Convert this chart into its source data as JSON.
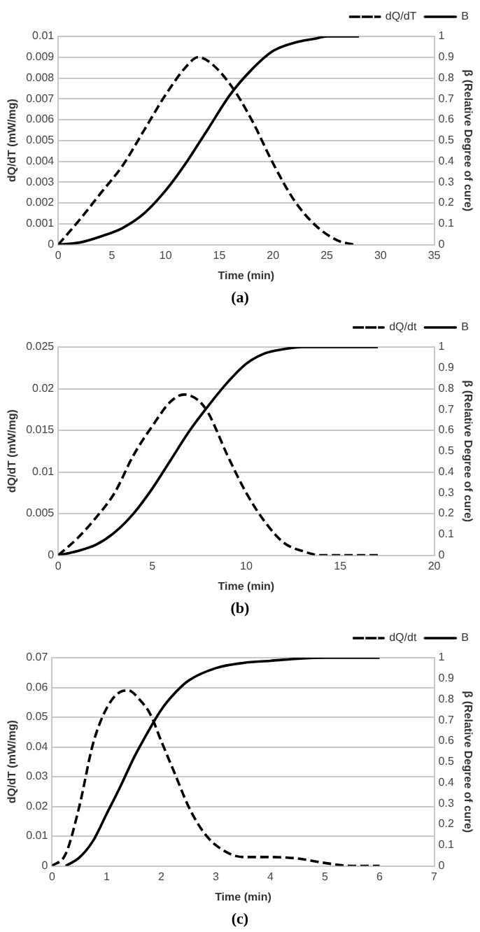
{
  "chart_data": [
    {
      "type": "line",
      "xlabel": "Time (min)",
      "ylabel": "dQ/dT (mW/mg)",
      "y2label": "β (Relative Degree of cure)",
      "annotations": [
        "(a)"
      ],
      "xlim": [
        0,
        35
      ],
      "xticks": [
        0,
        5,
        10,
        15,
        20,
        25,
        30,
        35
      ],
      "ylim": [
        0,
        0.01
      ],
      "yticks": [
        0,
        0.001,
        0.002,
        0.003,
        0.004,
        0.005,
        0.006,
        0.007,
        0.008,
        0.009,
        0.01
      ],
      "y2lim": [
        0,
        1
      ],
      "y2ticks": [
        0,
        0.1,
        0.2,
        0.3,
        0.4,
        0.5,
        0.6,
        0.7,
        0.8,
        0.9,
        1
      ],
      "grid": "y",
      "legend": "top right",
      "marker": "none",
      "series": [
        {
          "name": "dQ/dT",
          "color": "#000000",
          "line_style": "dashed",
          "x": [
            0,
            2,
            4,
            6,
            8,
            10,
            12,
            13,
            14,
            16,
            18,
            20,
            22,
            24,
            26,
            27.5
          ],
          "values": [
            0,
            0.0012,
            0.0025,
            0.0038,
            0.0055,
            0.0072,
            0.0086,
            0.009,
            0.0088,
            0.0077,
            0.006,
            0.0039,
            0.0021,
            0.0009,
            0.0002,
            0
          ]
        },
        {
          "name": "B",
          "color": "#000000",
          "line_style": "solid",
          "axis": "y2",
          "x": [
            0,
            2,
            4,
            6,
            8,
            10,
            12,
            13,
            14,
            16,
            18,
            20,
            22,
            24,
            25,
            28
          ],
          "values": [
            0,
            0.01,
            0.04,
            0.08,
            0.15,
            0.26,
            0.4,
            0.48,
            0.56,
            0.72,
            0.84,
            0.93,
            0.97,
            0.99,
            1,
            1
          ]
        }
      ]
    },
    {
      "type": "line",
      "xlabel": "Time (min)",
      "ylabel": "dQ/dT (mW/mg)",
      "y2label": "β (Relative Degree of cure)",
      "annotations": [
        "(b)"
      ],
      "xlim": [
        0,
        20
      ],
      "xticks": [
        0,
        5,
        10,
        15,
        20
      ],
      "ylim": [
        0,
        0.025
      ],
      "yticks": [
        0,
        0.005,
        0.01,
        0.015,
        0.02,
        0.025
      ],
      "y2lim": [
        0,
        1
      ],
      "y2ticks": [
        0,
        0.1,
        0.2,
        0.3,
        0.4,
        0.5,
        0.6,
        0.7,
        0.8,
        0.9,
        1
      ],
      "grid": "y",
      "legend": "top right",
      "marker": "none",
      "series": [
        {
          "name": "dQ/dt",
          "color": "#000000",
          "line_style": "dashed",
          "x": [
            0,
            1,
            2,
            3,
            4,
            5,
            6,
            6.7,
            7.5,
            8,
            9,
            10,
            11,
            12,
            13,
            14,
            17
          ],
          "values": [
            0,
            0.002,
            0.0045,
            0.0075,
            0.012,
            0.0155,
            0.0185,
            0.0193,
            0.0185,
            0.017,
            0.012,
            0.0075,
            0.004,
            0.0015,
            0.0005,
            0,
            0
          ]
        },
        {
          "name": "B",
          "color": "#000000",
          "line_style": "solid",
          "axis": "y2",
          "x": [
            0,
            1,
            2,
            3,
            4,
            5,
            6,
            7,
            8,
            9,
            10,
            11,
            12,
            13,
            17
          ],
          "values": [
            0,
            0.02,
            0.05,
            0.11,
            0.2,
            0.32,
            0.46,
            0.6,
            0.72,
            0.83,
            0.92,
            0.97,
            0.99,
            1,
            1
          ]
        }
      ]
    },
    {
      "type": "line",
      "xlabel": "Time (min)",
      "ylabel": "dQ/dT (mW/mg)",
      "y2label": "β (Relative Degree of cure)",
      "annotations": [
        "(c)"
      ],
      "xlim": [
        0,
        7
      ],
      "xticks": [
        0,
        1,
        2,
        3,
        4,
        5,
        6,
        7
      ],
      "ylim": [
        0,
        0.07
      ],
      "yticks": [
        0,
        0.01,
        0.02,
        0.03,
        0.04,
        0.05,
        0.06,
        0.07
      ],
      "y2lim": [
        0,
        1
      ],
      "y2ticks": [
        0,
        0.1,
        0.2,
        0.3,
        0.4,
        0.5,
        0.6,
        0.7,
        0.8,
        0.9,
        1
      ],
      "grid": "y",
      "legend": "top right",
      "marker": "none",
      "series": [
        {
          "name": "dQ/dt",
          "color": "#000000",
          "line_style": "dashed",
          "x": [
            0,
            0.25,
            0.5,
            0.75,
            1,
            1.25,
            1.4,
            1.6,
            1.8,
            2,
            2.25,
            2.5,
            2.75,
            3,
            3.5,
            4,
            4.5,
            5,
            5.5,
            6
          ],
          "values": [
            0,
            0.004,
            0.02,
            0.041,
            0.053,
            0.0585,
            0.059,
            0.056,
            0.051,
            0.042,
            0.031,
            0.02,
            0.012,
            0.007,
            0.003,
            0.003,
            0.0025,
            0.001,
            0,
            0
          ]
        },
        {
          "name": "B",
          "color": "#000000",
          "line_style": "solid",
          "axis": "y2",
          "x": [
            0.25,
            0.5,
            0.75,
            1,
            1.25,
            1.5,
            1.75,
            2,
            2.25,
            2.5,
            3,
            3.5,
            4,
            4.5,
            5,
            6
          ],
          "values": [
            0,
            0.04,
            0.12,
            0.25,
            0.38,
            0.52,
            0.64,
            0.75,
            0.83,
            0.89,
            0.95,
            0.975,
            0.985,
            0.995,
            1,
            1
          ]
        }
      ]
    }
  ]
}
